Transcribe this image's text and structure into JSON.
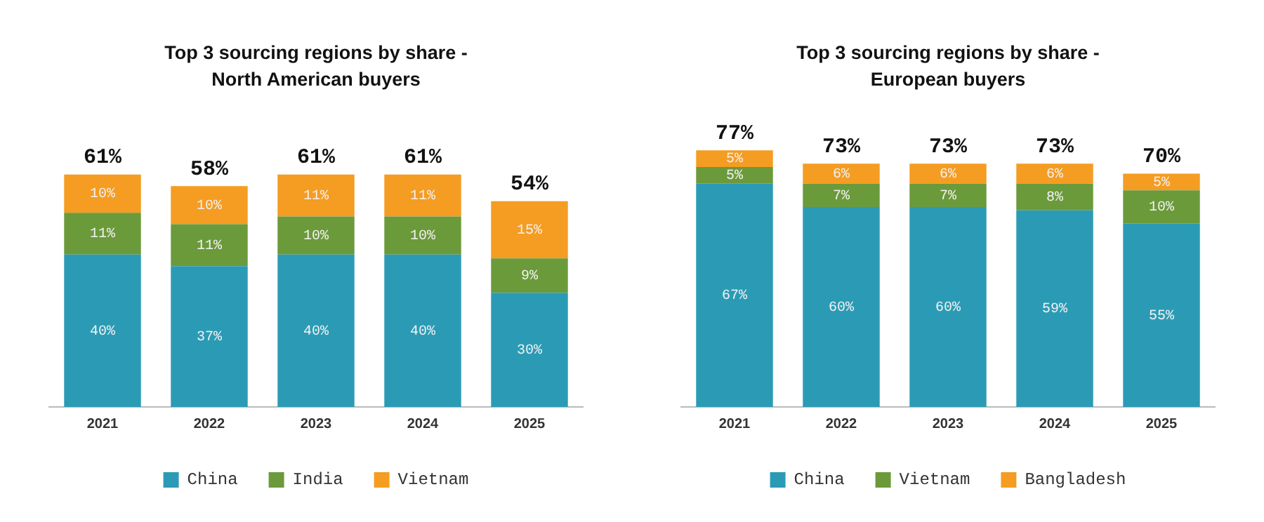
{
  "chart_data": [
    {
      "type": "bar",
      "title": "Top 3 sourcing regions by share - North American buyers",
      "categories": [
        "2021",
        "2022",
        "2023",
        "2024",
        "2025"
      ],
      "stacked": true,
      "grid": false,
      "legend": "bottom",
      "tick_labels": "x",
      "totals": [
        "61%",
        "58%",
        "61%",
        "61%",
        "54%"
      ],
      "series": [
        {
          "name": "China",
          "color": "#2b9bb5",
          "values": [
            40,
            37,
            40,
            40,
            30
          ],
          "value_labels": [
            "40%",
            "37%",
            "40%",
            "40%",
            "30%"
          ]
        },
        {
          "name": "India",
          "color": "#6b9a3b",
          "values": [
            11,
            11,
            10,
            10,
            9
          ],
          "value_labels": [
            "11%",
            "11%",
            "10%",
            "10%",
            "9%"
          ]
        },
        {
          "name": "Vietnam",
          "color": "#f59c22",
          "values": [
            10,
            10,
            11,
            11,
            15
          ],
          "value_labels": [
            "10%",
            "10%",
            "11%",
            "11%",
            "15%"
          ]
        }
      ]
    },
    {
      "type": "bar",
      "title": "Top 3 sourcing regions by share - European buyers",
      "categories": [
        "2021",
        "2022",
        "2023",
        "2024",
        "2025"
      ],
      "stacked": true,
      "grid": false,
      "legend": "bottom",
      "tick_labels": "x",
      "totals": [
        "77%",
        "73%",
        "73%",
        "73%",
        "70%"
      ],
      "series": [
        {
          "name": "China",
          "color": "#2b9bb5",
          "values": [
            67,
            60,
            60,
            59,
            55
          ],
          "value_labels": [
            "67%",
            "60%",
            "60%",
            "59%",
            "55%"
          ]
        },
        {
          "name": "Vietnam",
          "color": "#6b9a3b",
          "values": [
            5,
            7,
            7,
            8,
            10
          ],
          "value_labels": [
            "5%",
            "7%",
            "7%",
            "8%",
            "10%"
          ]
        },
        {
          "name": "Bangladesh",
          "color": "#f59c22",
          "values": [
            5,
            6,
            6,
            6,
            5
          ],
          "value_labels": [
            "5%",
            "6%",
            "6%",
            "6%",
            "5%"
          ]
        }
      ]
    }
  ]
}
